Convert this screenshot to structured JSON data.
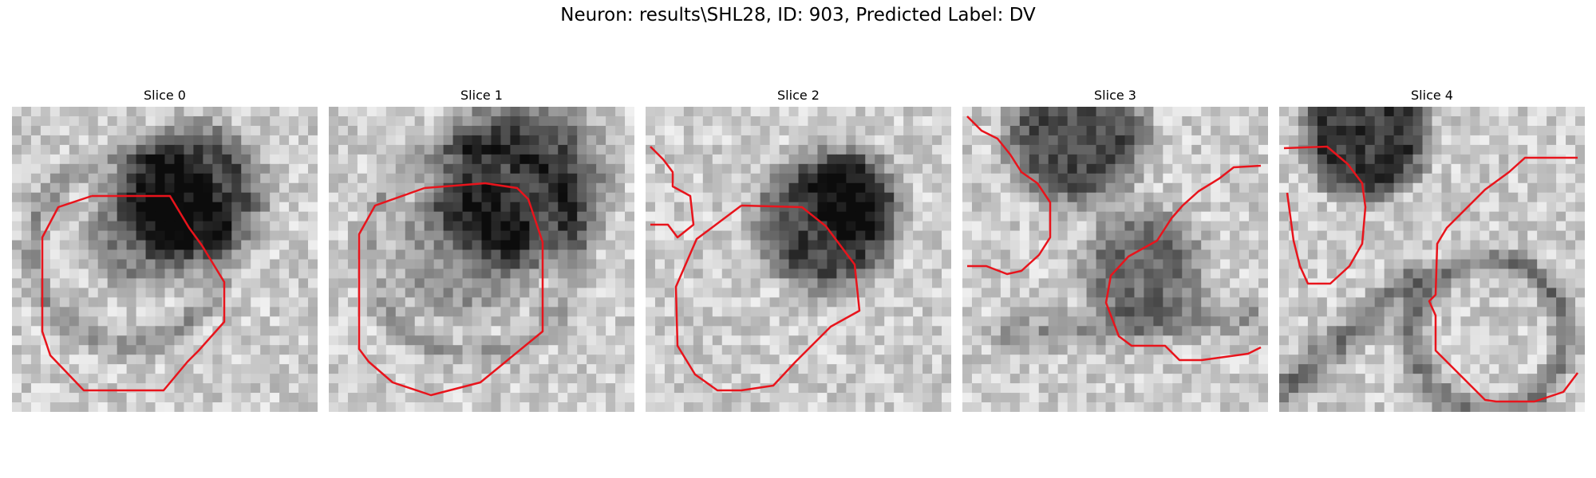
{
  "figure": {
    "title": "Neuron: results\\SHL28, ID: 903, Predicted Label: DV",
    "contour_color": "#e8141c"
  },
  "panels": [
    {
      "title": "Slice 0"
    },
    {
      "title": "Slice 1"
    },
    {
      "title": "Slice 2"
    },
    {
      "title": "Slice 3"
    },
    {
      "title": "Slice 4"
    }
  ]
}
